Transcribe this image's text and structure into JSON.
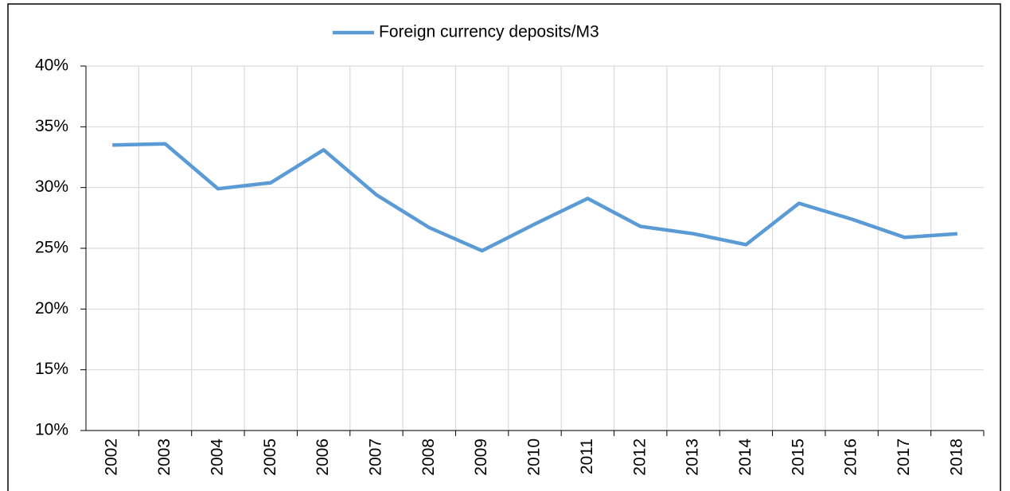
{
  "chart_data": {
    "type": "line",
    "categories": [
      "2002",
      "2003",
      "2004",
      "2005",
      "2006",
      "2007",
      "2008",
      "2009",
      "2010",
      "2011",
      "2012",
      "2013",
      "2014",
      "2015",
      "2016",
      "2017",
      "2018"
    ],
    "series": [
      {
        "name": "Foreign currency deposits/M3",
        "color": "#5b9bd5",
        "values": [
          33.5,
          33.6,
          29.9,
          30.4,
          33.1,
          29.4,
          26.7,
          24.8,
          27.0,
          29.1,
          26.8,
          26.2,
          25.3,
          28.7,
          27.4,
          25.9,
          26.2
        ]
      }
    ],
    "ylim": [
      10,
      40
    ],
    "yticks": [
      {
        "value": 10,
        "label": "10%"
      },
      {
        "value": 15,
        "label": "15%"
      },
      {
        "value": 20,
        "label": "20%"
      },
      {
        "value": 25,
        "label": "25%"
      },
      {
        "value": 30,
        "label": "30%"
      },
      {
        "value": 35,
        "label": "35%"
      },
      {
        "value": 40,
        "label": "40%"
      }
    ],
    "grid": true,
    "legend": "top"
  }
}
